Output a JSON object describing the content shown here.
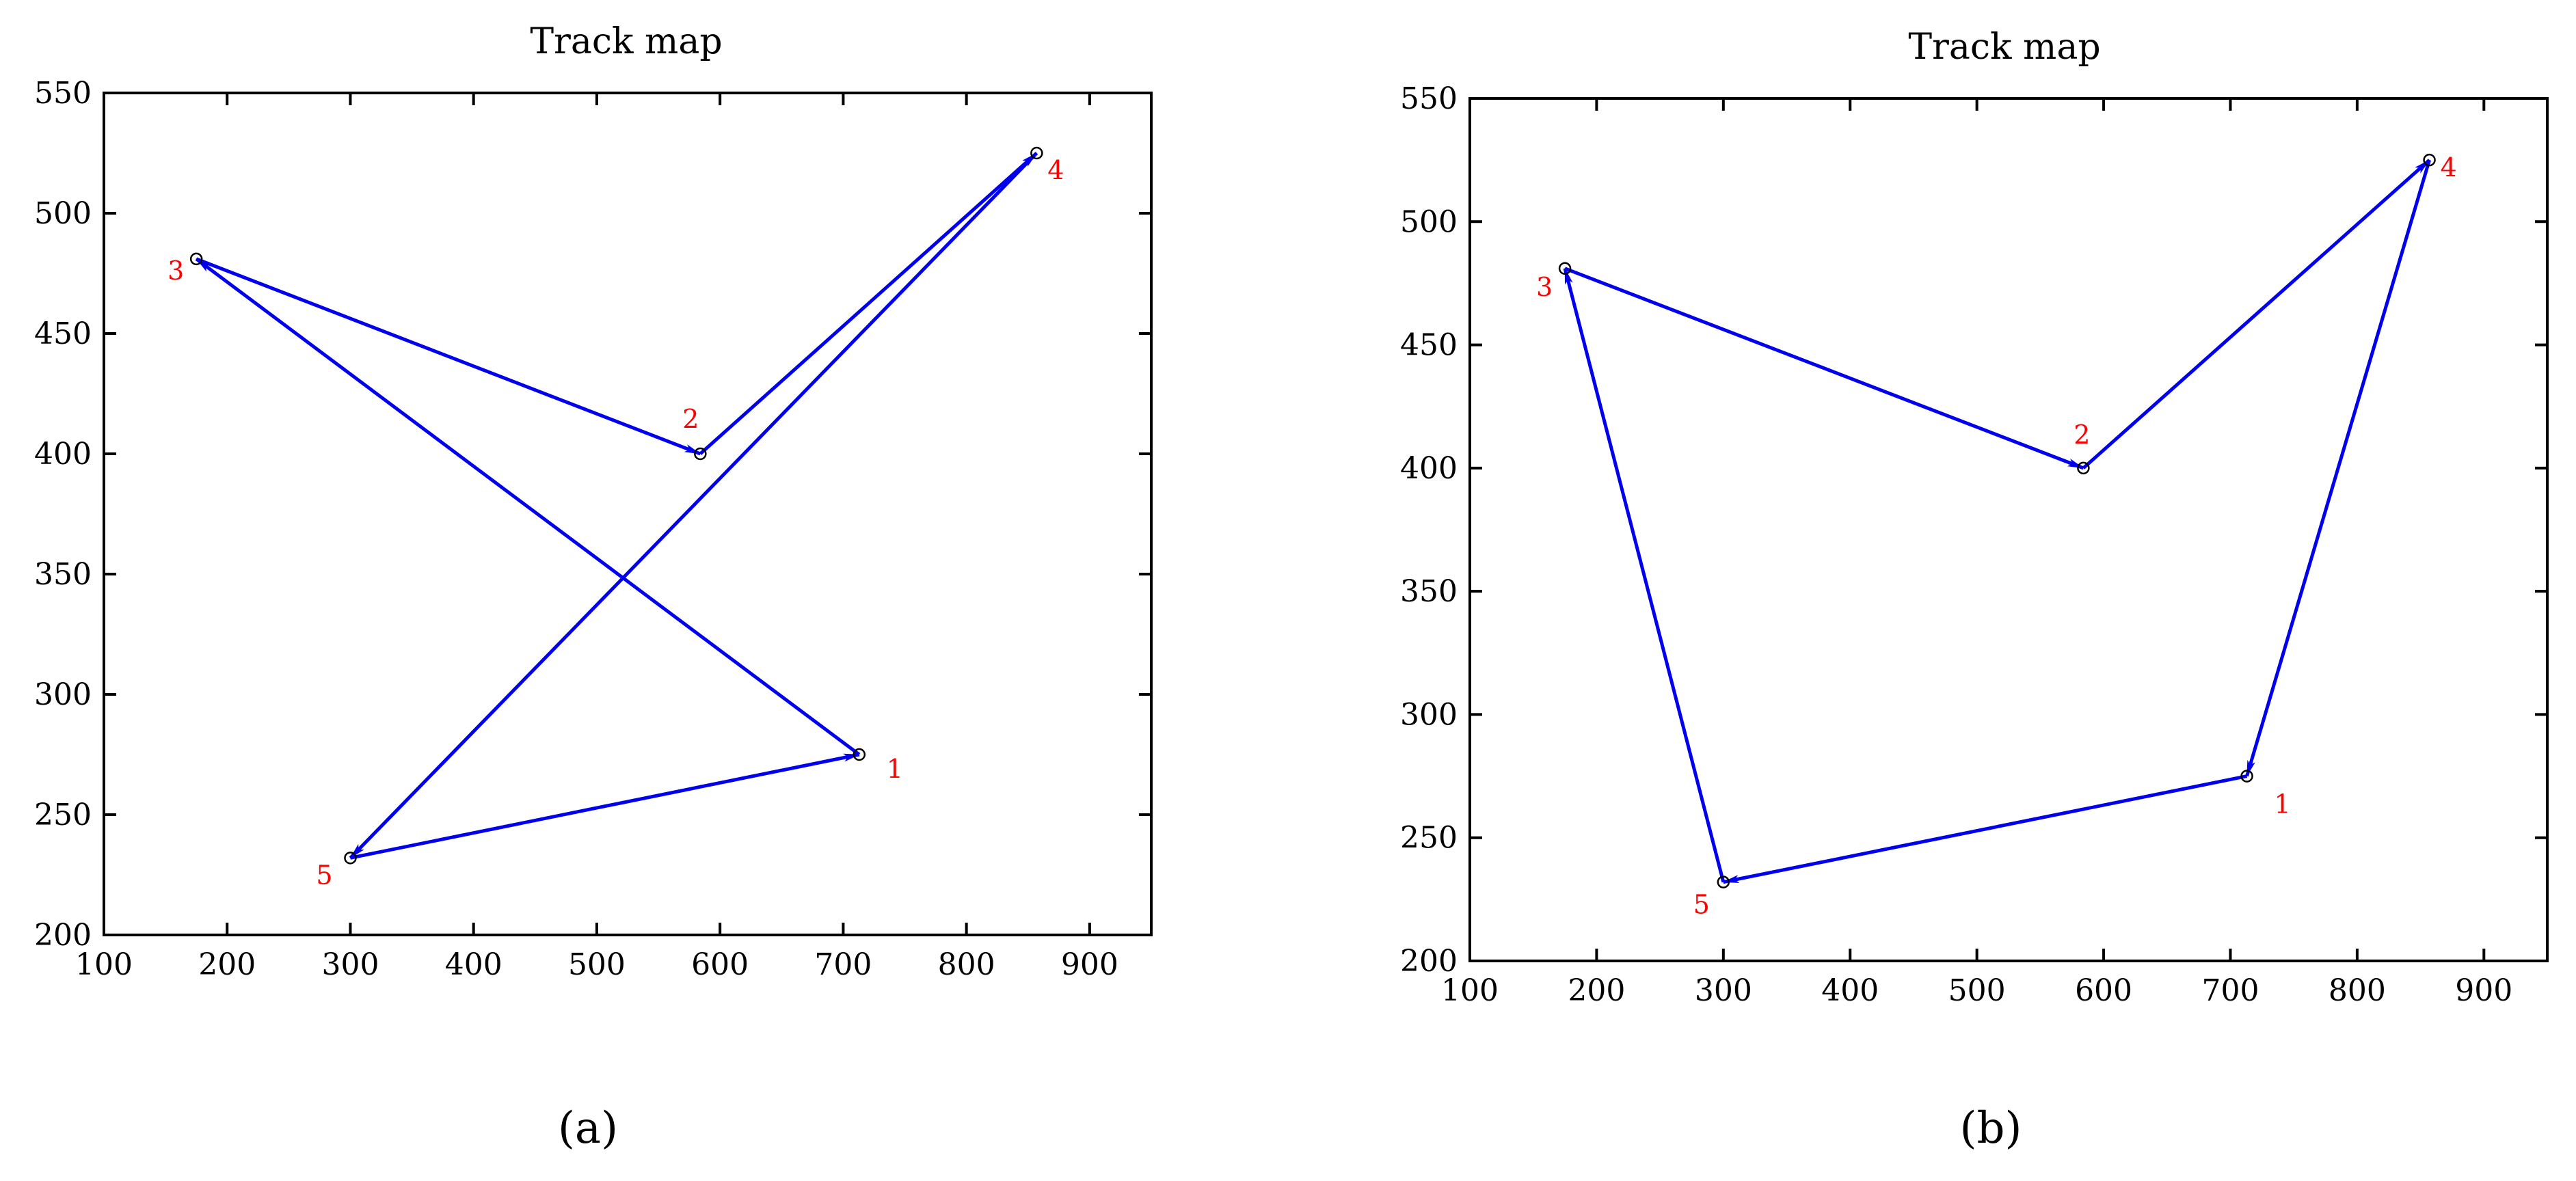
{
  "colors": {
    "track": "#0000ee",
    "point_label": "#ff0000",
    "axis": "#000000"
  },
  "chart_data": [
    {
      "type": "line",
      "panel_label": "(a)",
      "title": "Track map",
      "xlabel": "",
      "ylabel": "",
      "xlim": [
        100,
        950
      ],
      "ylim": [
        200,
        550
      ],
      "xticks": [
        100,
        200,
        300,
        400,
        500,
        600,
        700,
        800,
        900
      ],
      "yticks": [
        200,
        250,
        300,
        350,
        400,
        450,
        500,
        550
      ],
      "points": [
        {
          "label": "1",
          "x": 713,
          "y": 275
        },
        {
          "label": "2",
          "x": 584,
          "y": 400
        },
        {
          "label": "3",
          "x": 175,
          "y": 481
        },
        {
          "label": "4",
          "x": 857,
          "y": 525
        },
        {
          "label": "5",
          "x": 300,
          "y": 232
        }
      ],
      "path": [
        "3",
        "2",
        "4",
        "5",
        "1",
        "3"
      ]
    },
    {
      "type": "line",
      "panel_label": "(b)",
      "title": "Track map",
      "xlabel": "",
      "ylabel": "",
      "xlim": [
        100,
        950
      ],
      "ylim": [
        200,
        550
      ],
      "xticks": [
        100,
        200,
        300,
        400,
        500,
        600,
        700,
        800,
        900
      ],
      "yticks": [
        200,
        250,
        300,
        350,
        400,
        450,
        500,
        550
      ],
      "points": [
        {
          "label": "1",
          "x": 713,
          "y": 275
        },
        {
          "label": "2",
          "x": 584,
          "y": 400
        },
        {
          "label": "3",
          "x": 175,
          "y": 481
        },
        {
          "label": "4",
          "x": 857,
          "y": 525
        },
        {
          "label": "5",
          "x": 300,
          "y": 232
        }
      ],
      "path": [
        "3",
        "2",
        "4",
        "1",
        "5",
        "3"
      ]
    }
  ]
}
